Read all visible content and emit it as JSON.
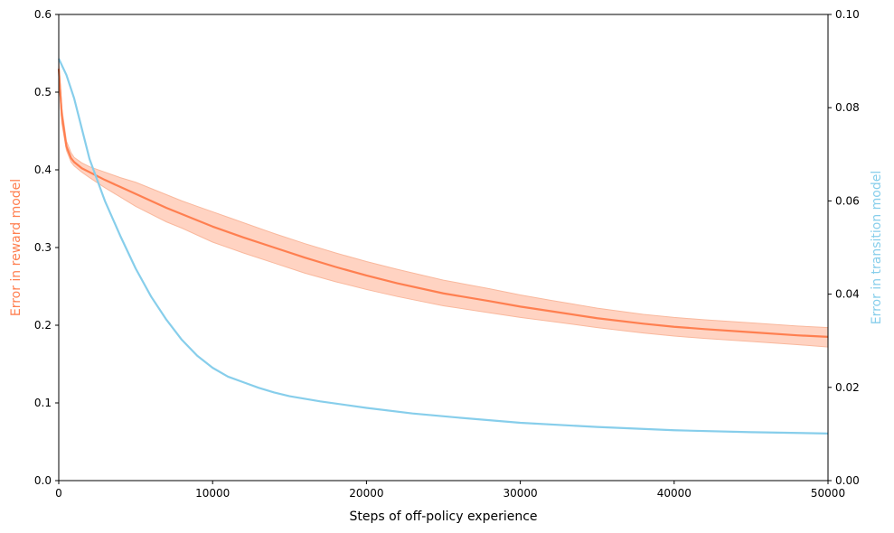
{
  "chart_data": {
    "type": "line",
    "xlabel": "Steps of off-policy experience",
    "ylabel_left": "Error in reward model",
    "ylabel_right": "Error in transition model",
    "xlim": [
      0,
      50000
    ],
    "ylim_left": [
      0,
      0.6
    ],
    "ylim_right": [
      0,
      0.1
    ],
    "xticks": [
      "0",
      "10000",
      "20000",
      "30000",
      "40000",
      "50000"
    ],
    "yticks_left": [
      "0.0",
      "0.1",
      "0.2",
      "0.3",
      "0.4",
      "0.5",
      "0.6"
    ],
    "yticks_right": [
      "0.00",
      "0.02",
      "0.04",
      "0.06",
      "0.08",
      "0.10"
    ],
    "grid": false,
    "legend": "none",
    "colors": {
      "reward": "#ff7f50",
      "reward_band": "#ffd3c2",
      "transition": "#87ceeb"
    },
    "series": [
      {
        "axis": "left",
        "x": [
          0,
          200,
          500,
          800,
          1000,
          1500,
          2000,
          3000,
          4000,
          5000,
          6000,
          7000,
          8000,
          9000,
          10000,
          12000,
          14000,
          16000,
          18000,
          20000,
          22000,
          25000,
          28000,
          30000,
          32000,
          35000,
          38000,
          40000,
          42000,
          45000,
          48000,
          50000
        ],
        "y": [
          0.53,
          0.47,
          0.43,
          0.415,
          0.41,
          0.402,
          0.397,
          0.387,
          0.378,
          0.369,
          0.36,
          0.351,
          0.343,
          0.335,
          0.327,
          0.313,
          0.3,
          0.287,
          0.275,
          0.264,
          0.254,
          0.241,
          0.231,
          0.224,
          0.218,
          0.209,
          0.202,
          0.198,
          0.195,
          0.191,
          0.187,
          0.185
        ],
        "lower": [
          0.52,
          0.46,
          0.425,
          0.41,
          0.405,
          0.397,
          0.39,
          0.377,
          0.365,
          0.353,
          0.343,
          0.333,
          0.325,
          0.316,
          0.307,
          0.293,
          0.28,
          0.267,
          0.256,
          0.246,
          0.237,
          0.225,
          0.216,
          0.21,
          0.205,
          0.197,
          0.19,
          0.186,
          0.183,
          0.179,
          0.175,
          0.172
        ],
        "upper": [
          0.54,
          0.48,
          0.437,
          0.422,
          0.416,
          0.409,
          0.404,
          0.397,
          0.39,
          0.384,
          0.376,
          0.368,
          0.36,
          0.353,
          0.346,
          0.332,
          0.318,
          0.305,
          0.293,
          0.282,
          0.272,
          0.258,
          0.247,
          0.239,
          0.232,
          0.222,
          0.214,
          0.21,
          0.207,
          0.203,
          0.199,
          0.197
        ]
      },
      {
        "axis": "right",
        "x": [
          0,
          500,
          1000,
          1500,
          2000,
          3000,
          4000,
          5000,
          6000,
          7000,
          8000,
          9000,
          10000,
          11000,
          12000,
          13000,
          14000,
          15000,
          17000,
          20000,
          23000,
          26000,
          30000,
          35000,
          40000,
          45000,
          50000
        ],
        "y": [
          0.0905,
          0.087,
          0.082,
          0.0755,
          0.069,
          0.06,
          0.0525,
          0.0455,
          0.0395,
          0.0345,
          0.0302,
          0.0268,
          0.0242,
          0.0223,
          0.0211,
          0.0199,
          0.0189,
          0.0181,
          0.017,
          0.0156,
          0.0144,
          0.0135,
          0.0124,
          0.0115,
          0.0108,
          0.0104,
          0.0101
        ]
      }
    ]
  }
}
